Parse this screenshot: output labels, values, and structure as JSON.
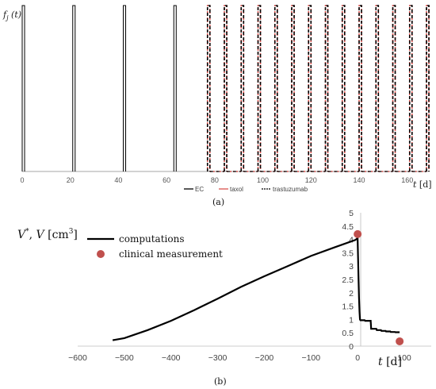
{
  "chart_data": [
    {
      "panel": "(a)",
      "type": "line",
      "ylabel": "f_j (t)",
      "xlabel": "t [d]",
      "xlim": [
        0,
        168
      ],
      "xticks": [
        0,
        20,
        40,
        60,
        80,
        100,
        120,
        140,
        160
      ],
      "grid": false,
      "legend_position": "bottom-center",
      "ec_pulses": [
        [
          0,
          1
        ],
        [
          21,
          22
        ],
        [
          42,
          43
        ],
        [
          63,
          64
        ]
      ],
      "weekly_pulses": [
        [
          77,
          78
        ],
        [
          84,
          85
        ],
        [
          91,
          92
        ],
        [
          98,
          99
        ],
        [
          105,
          106
        ],
        [
          112,
          113
        ],
        [
          119,
          120
        ],
        [
          126,
          127
        ],
        [
          133,
          134
        ],
        [
          140,
          141
        ],
        [
          147,
          148
        ],
        [
          154,
          155
        ],
        [
          161,
          162
        ],
        [
          168,
          169
        ]
      ],
      "series": [
        {
          "name": "EC",
          "color": "#000000",
          "dash": "solid"
        },
        {
          "name": "taxol",
          "color": "#d9534f",
          "dash": "solid"
        },
        {
          "name": "trastuzumab",
          "color": "#000000",
          "dash": "dashed"
        }
      ]
    },
    {
      "panel": "(b)",
      "type": "line",
      "ylabel": "V*, V [cm³]",
      "xlabel": "t [d]",
      "xlim": [
        -600,
        100
      ],
      "ylim": [
        0,
        5
      ],
      "xticks": [
        -600,
        -500,
        -400,
        -300,
        -200,
        -100,
        0,
        100
      ],
      "yticks": [
        0,
        0.5,
        1,
        1.5,
        2,
        2.5,
        3,
        3.5,
        4,
        4.5,
        5
      ],
      "grid": false,
      "legend_position": "top-left",
      "series": [
        {
          "name": "computations",
          "color": "#000000",
          "x": [
            -525,
            -500,
            -450,
            -400,
            -350,
            -300,
            -250,
            -200,
            -150,
            -100,
            -50,
            -5,
            0,
            1,
            2,
            3,
            4,
            5,
            6,
            15,
            16,
            28,
            29,
            40,
            41,
            50,
            51,
            60,
            61,
            70,
            71,
            80,
            81,
            90
          ],
          "y": [
            0.22,
            0.3,
            0.6,
            0.95,
            1.35,
            1.78,
            2.22,
            2.62,
            3.0,
            3.38,
            3.7,
            3.98,
            4.05,
            3.3,
            2.5,
            1.8,
            1.3,
            1.0,
            0.97,
            0.97,
            0.95,
            0.95,
            0.65,
            0.65,
            0.6,
            0.6,
            0.57,
            0.57,
            0.55,
            0.55,
            0.53,
            0.53,
            0.52,
            0.52
          ]
        },
        {
          "name": "clinical measurement",
          "color": "#c0504d",
          "x": [
            0,
            90
          ],
          "y": [
            4.2,
            0.18
          ]
        }
      ]
    }
  ],
  "captions": {
    "a": "(a)",
    "b": "(b)"
  }
}
